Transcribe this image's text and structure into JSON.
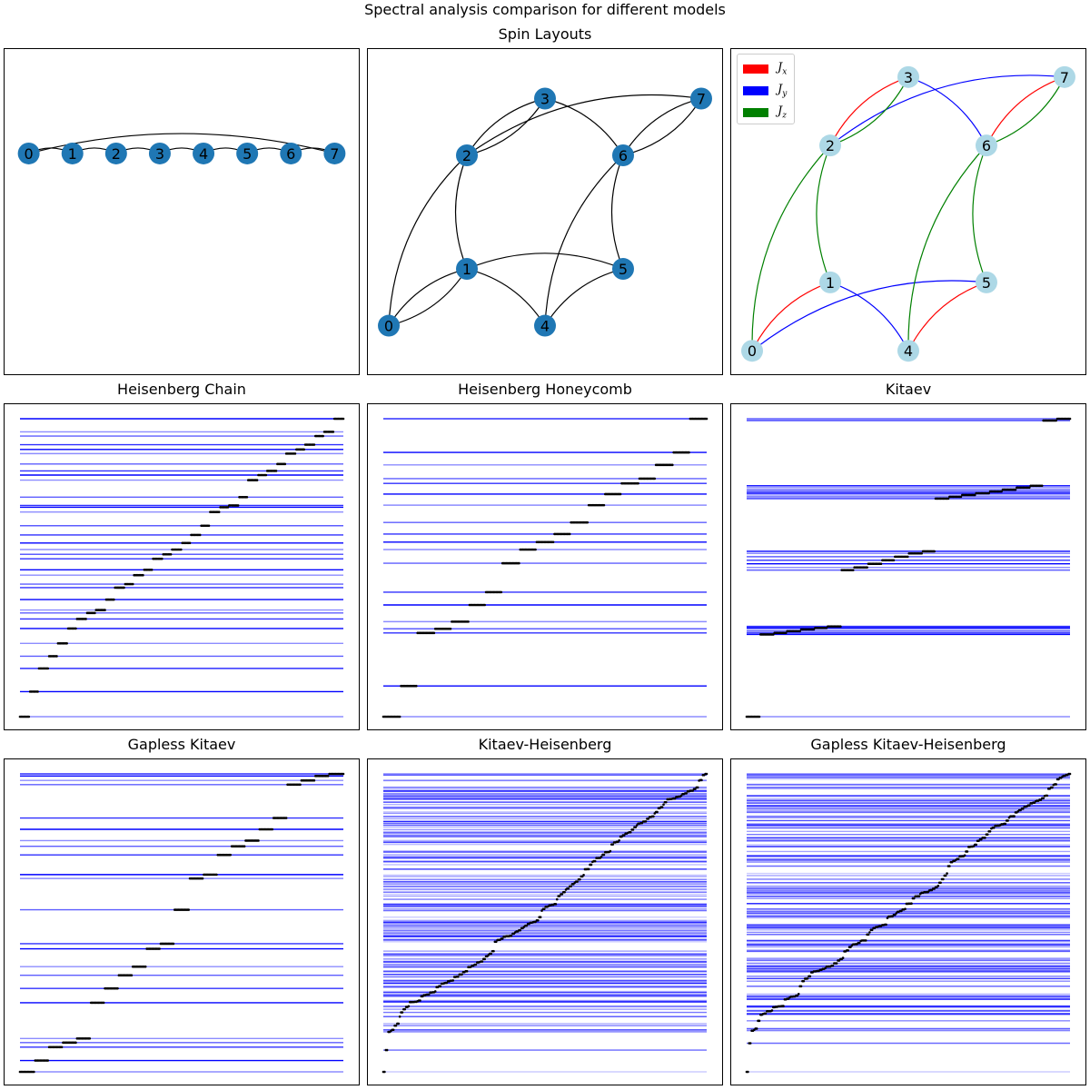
{
  "suptitle": "Spectral analysis comparison for different models",
  "row_titles": {
    "layouts": "Spin Layouts"
  },
  "colors": {
    "node_default": "#1f77b4",
    "node_kitaev": "#add8e6",
    "Jx": "#ff0000",
    "Jy": "#0000ff",
    "Jz": "#008000",
    "edge": "#000000",
    "level_line": "#0000ff",
    "eigen_dot": "#000000"
  },
  "layouts": [
    {
      "type": "graph",
      "layout": "chain",
      "nodes": [
        {
          "id": 0,
          "label": "0",
          "x": 0.0,
          "y": 0.0
        },
        {
          "id": 1,
          "label": "1",
          "x": 1.0,
          "y": 0.0
        },
        {
          "id": 2,
          "label": "2",
          "x": 2.0,
          "y": 0.0
        },
        {
          "id": 3,
          "label": "3",
          "x": 3.0,
          "y": 0.0
        },
        {
          "id": 4,
          "label": "4",
          "x": 4.0,
          "y": 0.0
        },
        {
          "id": 5,
          "label": "5",
          "x": 5.0,
          "y": 0.0
        },
        {
          "id": 6,
          "label": "6",
          "x": 6.0,
          "y": 0.0
        },
        {
          "id": 7,
          "label": "7",
          "x": 7.0,
          "y": 0.0
        }
      ],
      "xlim": [
        -0.2,
        7.2
      ],
      "ylim": [
        -3.0,
        1.3
      ],
      "edges": [
        {
          "from": 0,
          "to": 1,
          "bend": 0.25
        },
        {
          "from": 1,
          "to": 2,
          "bend": 0.25
        },
        {
          "from": 2,
          "to": 3,
          "bend": 0.25
        },
        {
          "from": 3,
          "to": 4,
          "bend": 0.25
        },
        {
          "from": 4,
          "to": 5,
          "bend": 0.25
        },
        {
          "from": 5,
          "to": 6,
          "bend": 0.25
        },
        {
          "from": 6,
          "to": 7,
          "bend": 0.25
        },
        {
          "from": 0,
          "to": 7,
          "bend": 0.13
        }
      ]
    },
    {
      "type": "graph",
      "layout": "honeycomb",
      "nodes": [
        {
          "id": 0,
          "label": "0",
          "x": 0.0,
          "y": 0.0
        },
        {
          "id": 1,
          "label": "1",
          "x": 1.0,
          "y": 0.6
        },
        {
          "id": 2,
          "label": "2",
          "x": 1.0,
          "y": 1.8
        },
        {
          "id": 3,
          "label": "3",
          "x": 2.0,
          "y": 2.4
        },
        {
          "id": 4,
          "label": "4",
          "x": 2.0,
          "y": 0.0
        },
        {
          "id": 5,
          "label": "5",
          "x": 3.0,
          "y": 0.6
        },
        {
          "id": 6,
          "label": "6",
          "x": 3.0,
          "y": 1.8
        },
        {
          "id": 7,
          "label": "7",
          "x": 4.0,
          "y": 2.4
        }
      ],
      "xlim": [
        -0.07,
        4.07
      ],
      "ylim": [
        -0.35,
        2.76
      ],
      "edges": [
        {
          "from": 0,
          "to": 1,
          "bend": 0.2
        },
        {
          "from": 0,
          "to": 1,
          "bend": -0.2
        },
        {
          "from": 1,
          "to": 2,
          "bend": 0.2
        },
        {
          "from": 2,
          "to": 3,
          "bend": 0.2
        },
        {
          "from": 2,
          "to": 3,
          "bend": -0.2
        },
        {
          "from": 3,
          "to": 6,
          "bend": 0.2
        },
        {
          "from": 6,
          "to": 7,
          "bend": 0.2
        },
        {
          "from": 6,
          "to": 7,
          "bend": -0.2
        },
        {
          "from": 5,
          "to": 6,
          "bend": 0.2
        },
        {
          "from": 4,
          "to": 5,
          "bend": 0.2
        },
        {
          "from": 4,
          "to": 6,
          "bend": 0.2
        },
        {
          "from": 1,
          "to": 4,
          "bend": 0.2
        },
        {
          "from": 0,
          "to": 2,
          "bend": 0.2
        },
        {
          "from": 1,
          "to": 5,
          "bend": 0.2
        },
        {
          "from": 2,
          "to": 7,
          "bend": 0.2
        }
      ]
    },
    {
      "type": "graph",
      "layout": "kitaev",
      "nodes": [
        {
          "id": 0,
          "label": "0",
          "x": 0.0,
          "y": 0.0
        },
        {
          "id": 1,
          "label": "1",
          "x": 1.0,
          "y": 0.6
        },
        {
          "id": 2,
          "label": "2",
          "x": 1.0,
          "y": 1.8
        },
        {
          "id": 3,
          "label": "3",
          "x": 2.0,
          "y": 2.4
        },
        {
          "id": 4,
          "label": "4",
          "x": 2.0,
          "y": 0.0
        },
        {
          "id": 5,
          "label": "5",
          "x": 3.0,
          "y": 0.6
        },
        {
          "id": 6,
          "label": "6",
          "x": 3.0,
          "y": 1.8
        },
        {
          "id": 7,
          "label": "7",
          "x": 4.0,
          "y": 2.4
        }
      ],
      "xlim": [
        -0.07,
        4.07
      ],
      "ylim": [
        -0.07,
        2.51
      ],
      "edges": [
        {
          "from": 0,
          "to": 1,
          "bend": 0.2,
          "bond": "Jx"
        },
        {
          "from": 2,
          "to": 3,
          "bend": 0.2,
          "bond": "Jx"
        },
        {
          "from": 4,
          "to": 5,
          "bend": 0.2,
          "bond": "Jx"
        },
        {
          "from": 6,
          "to": 7,
          "bend": 0.2,
          "bond": "Jx"
        },
        {
          "from": 1,
          "to": 4,
          "bend": 0.2,
          "bond": "Jy"
        },
        {
          "from": 3,
          "to": 6,
          "bend": 0.2,
          "bond": "Jy"
        },
        {
          "from": 0,
          "to": 5,
          "bend": 0.2,
          "bond": "Jy"
        },
        {
          "from": 2,
          "to": 7,
          "bend": 0.2,
          "bond": "Jy"
        },
        {
          "from": 1,
          "to": 2,
          "bend": 0.2,
          "bond": "Jz"
        },
        {
          "from": 5,
          "to": 6,
          "bend": 0.2,
          "bond": "Jz"
        },
        {
          "from": 0,
          "to": 2,
          "bend": 0.2,
          "bond": "Jz"
        },
        {
          "from": 4,
          "to": 6,
          "bend": 0.2,
          "bond": "Jz"
        },
        {
          "from": 2,
          "to": 3,
          "bend": -0.2,
          "bond": "Jz"
        },
        {
          "from": 6,
          "to": 7,
          "bend": -0.2,
          "bond": "Jz"
        }
      ],
      "legend": [
        {
          "key": "Jx",
          "base": "J",
          "sub": "x"
        },
        {
          "key": "Jy",
          "base": "J",
          "sub": "y"
        },
        {
          "key": "Jz",
          "base": "J",
          "sub": "z"
        }
      ]
    }
  ],
  "chart_data": [
    {
      "type": "scatter",
      "title": "Heisenberg Chain",
      "levels_normalized": [
        0.0,
        0.084,
        0.162,
        0.203,
        0.246,
        0.296,
        0.328,
        0.348,
        0.358,
        0.393,
        0.433,
        0.445,
        0.475,
        0.493,
        0.53,
        0.545,
        0.561,
        0.583,
        0.61,
        0.641,
        0.687,
        0.703,
        0.709,
        0.737,
        0.794,
        0.811,
        0.825,
        0.848,
        0.883,
        0.897,
        0.913,
        0.942,
        0.956,
        1.0
      ]
    },
    {
      "type": "scatter",
      "title": "Heisenberg Honeycomb",
      "levels_normalized": [
        0.0,
        0.103,
        0.281,
        0.295,
        0.319,
        0.375,
        0.418,
        0.515,
        0.561,
        0.586,
        0.613,
        0.652,
        0.71,
        0.747,
        0.783,
        0.799,
        0.845,
        0.887,
        1.0
      ]
    },
    {
      "type": "scatter",
      "title": "Kitaev",
      "levels_normalized": [
        0.0,
        0.276,
        0.281,
        0.287,
        0.293,
        0.298,
        0.303,
        0.492,
        0.501,
        0.513,
        0.525,
        0.537,
        0.548,
        0.555,
        0.732,
        0.738,
        0.744,
        0.75,
        0.756,
        0.762,
        0.769,
        0.775,
        0.994,
        1.0
      ]
    },
    {
      "type": "scatter",
      "title": "Gapless Kitaev",
      "levels_normalized": [
        0.0,
        0.038,
        0.083,
        0.098,
        0.112,
        0.232,
        0.28,
        0.324,
        0.353,
        0.413,
        0.43,
        0.544,
        0.649,
        0.662,
        0.728,
        0.757,
        0.776,
        0.814,
        0.852,
        0.964,
        0.978,
        0.993,
        1.0
      ]
    },
    {
      "type": "scatter",
      "title": "Kitaev-Heisenberg",
      "levels_normalized": [
        0.0,
        0.073,
        0.134,
        0.137,
        0.141
      ]
    },
    {
      "type": "scatter",
      "title": "Gapless Kitaev-Heisenberg",
      "levels_normalized": [
        0.0,
        0.096,
        0.138,
        0.141,
        0.145
      ]
    }
  ]
}
